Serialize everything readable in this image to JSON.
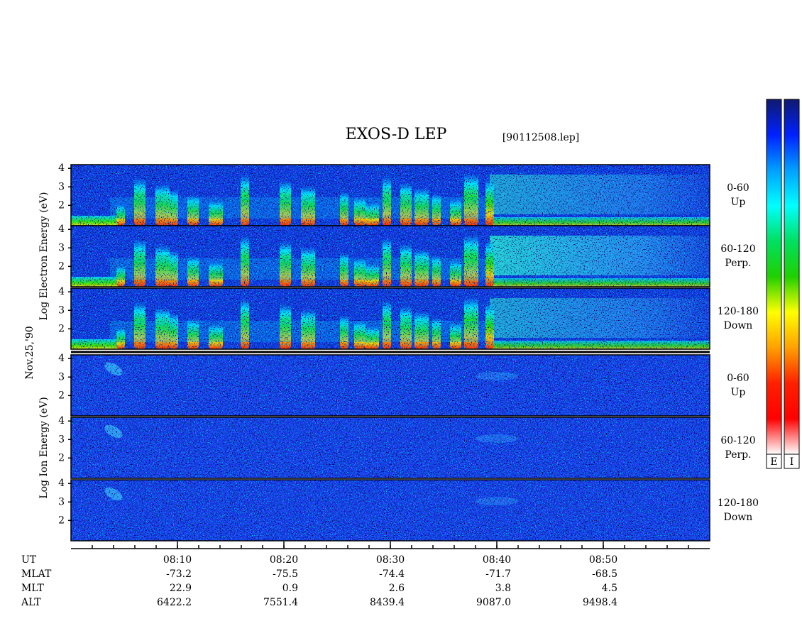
{
  "chart_data": {
    "type": "spectrogram",
    "title": "EXOS-D LEP",
    "subtitle": "[90112508.lep]",
    "date_label": "Nov.25,'90",
    "xlim": [
      "08:00",
      "09:00"
    ],
    "xticks": [
      "08:10",
      "08:20",
      "08:30",
      "08:40",
      "08:50"
    ],
    "minor_tick_minutes": 2,
    "ylim": [
      0.9,
      4.2
    ],
    "yticks": [
      2,
      3,
      4
    ],
    "channels": [
      {
        "range": "0-60",
        "direction": "Up"
      },
      {
        "range": "60-120",
        "direction": "Perp."
      },
      {
        "range": "120-180",
        "direction": "Down"
      }
    ],
    "panels": [
      {
        "species": "Electron",
        "axis_label": "Log  Electron  Energy (eV)",
        "colorbar": "E"
      },
      {
        "species": "Ion",
        "axis_label": "Log  Ion  Energy (eV)",
        "colorbar": "I"
      }
    ],
    "colormap": [
      "#101a6e",
      "#0020ff",
      "#00a0ff",
      "#00ffff",
      "#00e060",
      "#20d000",
      "#ffff00",
      "#ffa000",
      "#ff2000",
      "#ff0000",
      "#ffffff"
    ],
    "ephemeris": {
      "row_labels": [
        "UT",
        "MLAT",
        "MLT",
        "ALT"
      ],
      "MLAT": [
        "-73.2",
        "-75.5",
        "-74.4",
        "-71.7",
        "-68.5"
      ],
      "MLT": [
        "22.9",
        "0.9",
        "2.6",
        "3.8",
        "4.5"
      ],
      "ALT": [
        "6422.2",
        "7551.4",
        "8439.4",
        "9087.0",
        "9498.4"
      ]
    }
  }
}
